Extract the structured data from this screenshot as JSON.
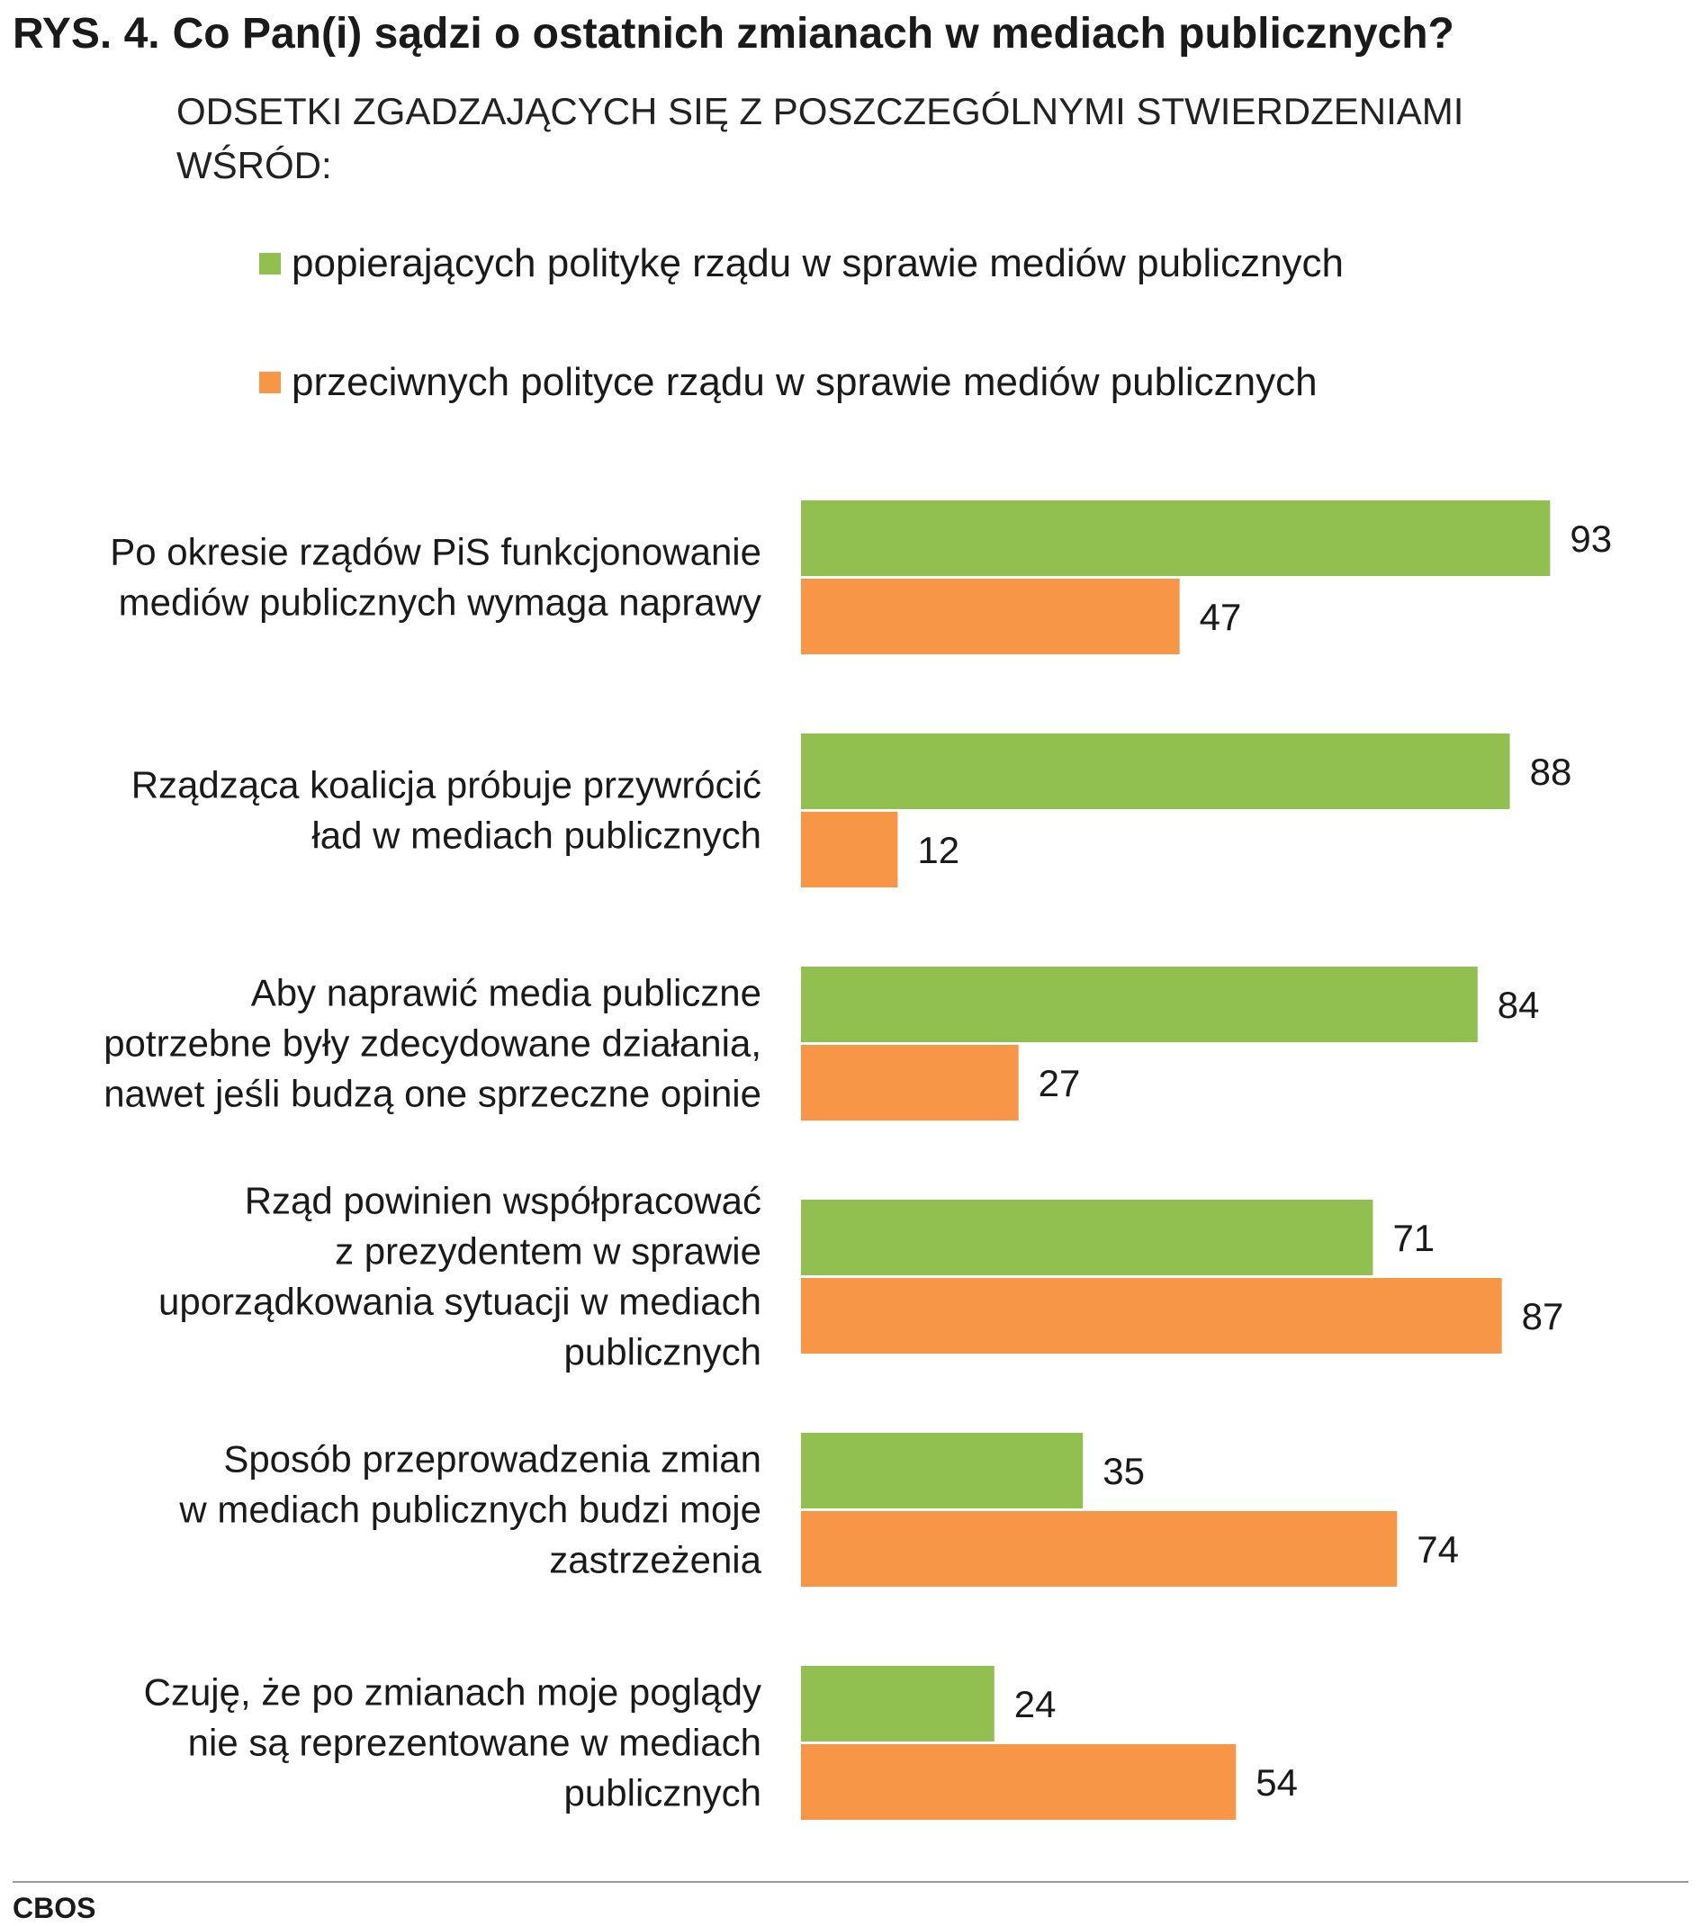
{
  "header": {
    "number": "RYS. 4.",
    "question": "Co Pan(i) sądzi o ostatnich zmianach w mediach publicznych?",
    "subtitle": "ODSETKI ZGADZAJĄCYCH SIĘ Z POSZCZEGÓLNYMI STWIERDZENIAMI WŚRÓD:"
  },
  "legend": [
    {
      "label": "popierających politykę rządu w sprawie mediów publicznych",
      "color": "#92c050"
    },
    {
      "label": "przeciwnych polityce rządu w sprawie mediów publicznych",
      "color": "#f79646"
    }
  ],
  "chart_data": {
    "type": "bar",
    "orientation": "horizontal",
    "categories": [
      [
        "Po okresie rządów PiS funkcjonowanie",
        "mediów publicznych wymaga naprawy"
      ],
      [
        "Rządząca koalicja próbuje przywrócić",
        "ład w mediach publicznych"
      ],
      [
        "Aby naprawić media publiczne",
        "potrzebne były zdecydowane działania,",
        "nawet jeśli budzą one sprzeczne opinie"
      ],
      [
        "Rząd powinien współpracować",
        "z prezydentem w sprawie",
        "uporządkowania sytuacji w mediach",
        "publicznych"
      ],
      [
        "Sposób przeprowadzenia zmian",
        "w mediach publicznych budzi moje",
        "zastrzeżenia"
      ],
      [
        "Czuję, że po zmianach moje poglądy",
        "nie są reprezentowane w mediach",
        "publicznych"
      ]
    ],
    "series": [
      {
        "name": "popierających politykę rządu w sprawie mediów publicznych",
        "color": "#92c050",
        "values": [
          93,
          88,
          84,
          71,
          35,
          24
        ]
      },
      {
        "name": "przeciwnych polityce rządu w sprawie mediów publicznych",
        "color": "#f79646",
        "values": [
          47,
          12,
          27,
          87,
          74,
          54
        ]
      }
    ],
    "xlim": [
      0,
      100
    ],
    "grid": false,
    "legend_position": "top"
  },
  "footer": {
    "source": "CBOS"
  }
}
